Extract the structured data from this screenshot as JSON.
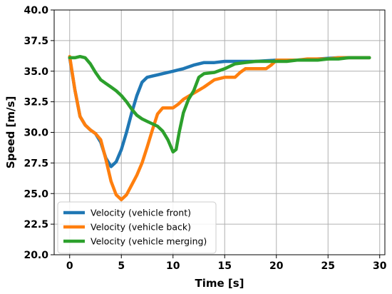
{
  "chart_data": {
    "type": "line",
    "title": "",
    "xlabel": "Time [s]",
    "ylabel": "Speed [m/s]",
    "xlim": [
      -1.5,
      30.5
    ],
    "ylim": [
      20.0,
      40.0
    ],
    "xticks": [
      0,
      5,
      10,
      15,
      20,
      25,
      30
    ],
    "yticks": [
      20.0,
      22.5,
      25.0,
      27.5,
      30.0,
      32.5,
      35.0,
      37.5,
      40.0
    ],
    "xtick_labels": [
      "0",
      "5",
      "10",
      "15",
      "20",
      "25",
      "30"
    ],
    "ytick_labels": [
      "20.0",
      "22.5",
      "25.0",
      "27.5",
      "30.0",
      "32.5",
      "35.0",
      "37.5",
      "40.0"
    ],
    "grid": true,
    "legend_position": "lower-left",
    "series": [
      {
        "name": "Velocity (vehicle front)",
        "color": "#1f77b4",
        "points": [
          [
            0,
            36.1
          ],
          [
            0.5,
            33.5
          ],
          [
            1,
            31.3
          ],
          [
            1.5,
            30.6
          ],
          [
            2,
            30.2
          ],
          [
            2.5,
            29.9
          ],
          [
            3,
            29.2
          ],
          [
            3.5,
            27.9
          ],
          [
            4,
            27.2
          ],
          [
            4.5,
            27.6
          ],
          [
            5,
            28.6
          ],
          [
            5.5,
            30.0
          ],
          [
            6,
            31.6
          ],
          [
            6.5,
            33.0
          ],
          [
            7,
            34.1
          ],
          [
            7.5,
            34.5
          ],
          [
            8,
            34.6
          ],
          [
            8.5,
            34.7
          ],
          [
            9,
            34.8
          ],
          [
            10,
            35.0
          ],
          [
            11,
            35.2
          ],
          [
            12,
            35.5
          ],
          [
            13,
            35.7
          ],
          [
            14,
            35.7
          ],
          [
            15,
            35.8
          ],
          [
            17,
            35.8
          ],
          [
            18,
            35.8
          ],
          [
            20,
            35.9
          ],
          [
            22,
            35.9
          ],
          [
            24,
            36.0
          ],
          [
            26,
            36.1
          ],
          [
            29,
            36.1
          ]
        ]
      },
      {
        "name": "Velocity (vehicle back)",
        "color": "#ff7f0e",
        "points": [
          [
            0,
            36.2
          ],
          [
            0.5,
            33.5
          ],
          [
            1,
            31.3
          ],
          [
            1.5,
            30.6
          ],
          [
            2,
            30.2
          ],
          [
            2.5,
            29.9
          ],
          [
            3,
            29.4
          ],
          [
            3.5,
            27.8
          ],
          [
            4,
            26.0
          ],
          [
            4.5,
            24.9
          ],
          [
            5,
            24.5
          ],
          [
            5.5,
            24.9
          ],
          [
            6,
            25.7
          ],
          [
            6.5,
            26.5
          ],
          [
            7,
            27.5
          ],
          [
            7.5,
            28.8
          ],
          [
            8,
            30.2
          ],
          [
            8.5,
            31.5
          ],
          [
            9,
            32.0
          ],
          [
            9.5,
            32.0
          ],
          [
            10,
            32.0
          ],
          [
            10.5,
            32.3
          ],
          [
            11,
            32.7
          ],
          [
            12,
            33.2
          ],
          [
            13,
            33.7
          ],
          [
            14,
            34.3
          ],
          [
            15,
            34.5
          ],
          [
            16,
            34.5
          ],
          [
            16.5,
            34.9
          ],
          [
            17,
            35.2
          ],
          [
            18,
            35.2
          ],
          [
            19,
            35.2
          ],
          [
            19.5,
            35.5
          ],
          [
            20,
            35.9
          ],
          [
            21,
            35.9
          ],
          [
            22,
            35.9
          ],
          [
            23,
            36.0
          ],
          [
            24,
            36.0
          ],
          [
            25,
            36.0
          ],
          [
            26,
            36.1
          ],
          [
            29,
            36.1
          ]
        ]
      },
      {
        "name": "Velocity (vehicle merging)",
        "color": "#2ca02c",
        "points": [
          [
            0,
            36.1
          ],
          [
            0.5,
            36.1
          ],
          [
            1,
            36.2
          ],
          [
            1.5,
            36.1
          ],
          [
            2,
            35.6
          ],
          [
            2.5,
            34.9
          ],
          [
            3,
            34.3
          ],
          [
            3.5,
            34.0
          ],
          [
            4,
            33.7
          ],
          [
            4.5,
            33.4
          ],
          [
            5,
            33.0
          ],
          [
            5.5,
            32.5
          ],
          [
            6,
            31.9
          ],
          [
            6.5,
            31.4
          ],
          [
            7,
            31.1
          ],
          [
            7.5,
            30.9
          ],
          [
            8,
            30.7
          ],
          [
            8.5,
            30.5
          ],
          [
            9,
            30.1
          ],
          [
            9.5,
            29.4
          ],
          [
            10,
            28.4
          ],
          [
            10.3,
            28.6
          ],
          [
            10.6,
            30.0
          ],
          [
            11,
            31.6
          ],
          [
            11.5,
            32.7
          ],
          [
            12,
            33.4
          ],
          [
            12.5,
            34.5
          ],
          [
            13,
            34.8
          ],
          [
            14,
            34.9
          ],
          [
            15,
            35.2
          ],
          [
            16,
            35.6
          ],
          [
            17,
            35.7
          ],
          [
            18,
            35.8
          ],
          [
            20,
            35.8
          ],
          [
            21,
            35.8
          ],
          [
            22,
            35.9
          ],
          [
            24,
            35.9
          ],
          [
            25,
            36.0
          ],
          [
            26,
            36.0
          ],
          [
            27,
            36.1
          ],
          [
            29,
            36.1
          ]
        ]
      }
    ]
  }
}
